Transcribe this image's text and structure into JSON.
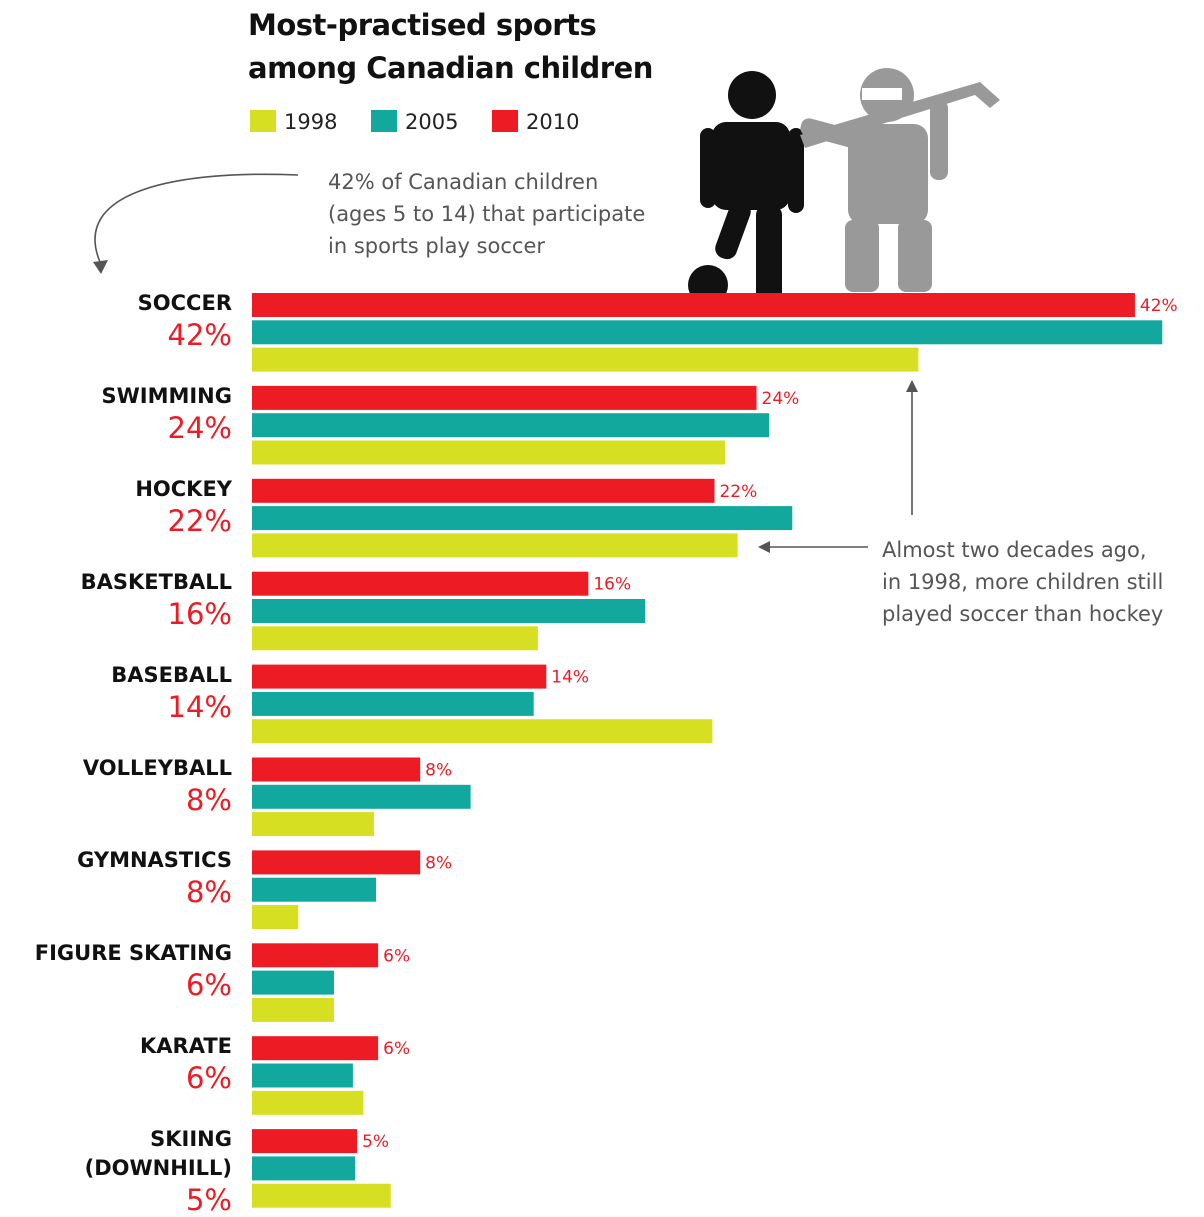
{
  "chart_data": {
    "type": "bar",
    "orientation": "horizontal",
    "title": "Most-practised sports among Canadian children",
    "categories": [
      "SOCCER",
      "SWIMMING",
      "HOCKEY",
      "BASKETBALL",
      "BASEBALL",
      "VOLLEYBALL",
      "GYMNASTICS",
      "FIGURE SKATING",
      "KARATE",
      "SKIING\n(DOWNHILL)"
    ],
    "series": [
      {
        "name": "2010",
        "color": "#ed1c24",
        "values": [
          42,
          24,
          22,
          16,
          14,
          8,
          8,
          6,
          6,
          5
        ],
        "value_labels": [
          "42%",
          "24%",
          "22%",
          "16%",
          "14%",
          "8%",
          "8%",
          "6%",
          "6%",
          "5%"
        ]
      },
      {
        "name": "2005",
        "color": "#13a89e",
        "values": [
          43.3,
          24.6,
          25.7,
          18.7,
          13.4,
          10.4,
          5.9,
          3.9,
          4.8,
          4.9
        ]
      },
      {
        "name": "1998",
        "color": "#d7df23",
        "values": [
          31.7,
          22.5,
          23.1,
          13.6,
          21.9,
          5.8,
          2.2,
          3.9,
          5.3,
          6.6
        ]
      }
    ],
    "legend_order": [
      "1998",
      "2005",
      "2010"
    ],
    "xlim": [
      0,
      45
    ],
    "annotations": [
      {
        "lines": [
          "42% of Canadian children",
          "(ages 5 to 14) that participate",
          "in sports play soccer"
        ]
      },
      {
        "lines": [
          "Almost two decades ago,",
          "in 1998, more children still",
          "played soccer than hockey"
        ]
      }
    ]
  }
}
